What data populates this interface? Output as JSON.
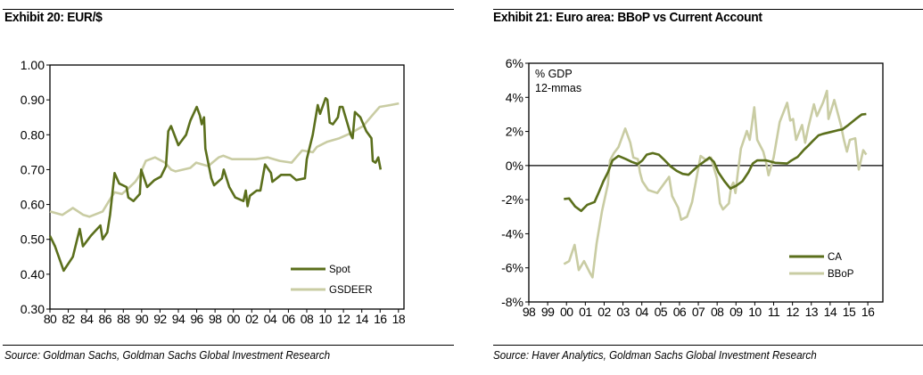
{
  "chart_data": [
    {
      "type": "line",
      "title": "Exhibit 20: EUR/$",
      "source": "Source: Goldman Sachs, Goldman Sachs Global Investment Research",
      "xlim": [
        1980,
        2018.6
      ],
      "ylim": [
        0.3,
        1.0
      ],
      "x_ticks": [
        1980,
        1982,
        1984,
        1986,
        1988,
        1990,
        1992,
        1994,
        1996,
        1998,
        2000,
        2002,
        2004,
        2006,
        2008,
        2010,
        2012,
        2014,
        2016,
        2018
      ],
      "x_tick_labels": [
        "80",
        "82",
        "84",
        "86",
        "88",
        "90",
        "92",
        "94",
        "96",
        "98",
        "00",
        "02",
        "04",
        "06",
        "08",
        "10",
        "12",
        "14",
        "16",
        "18"
      ],
      "y_ticks": [
        0.3,
        0.4,
        0.5,
        0.6,
        0.7,
        0.8,
        0.9,
        1.0
      ],
      "y_tick_labels": [
        "0.30",
        "0.40",
        "0.50",
        "0.60",
        "0.70",
        "0.80",
        "0.90",
        "1.00"
      ],
      "grid": false,
      "legend_position": "bottom-right",
      "series": [
        {
          "name": "Spot",
          "color": "#5b6f1c",
          "x": [
            1980.0,
            1980.55,
            1981.5,
            1982.5,
            1983.25,
            1983.6,
            1984.45,
            1985.5,
            1985.75,
            1986.25,
            1986.55,
            1987.05,
            1987.55,
            1988.35,
            1988.55,
            1989.1,
            1989.8,
            1989.95,
            1990.6,
            1991.4,
            1992.1,
            1992.65,
            1992.9,
            1993.2,
            1994.0,
            1994.85,
            1995.3,
            1996.0,
            1996.35,
            1996.55,
            1996.8,
            1996.95,
            1997.6,
            1997.9,
            1998.75,
            1998.95,
            1999.55,
            2000.2,
            2001.1,
            2001.35,
            2001.55,
            2001.8,
            2002.55,
            2002.95,
            2003.45,
            2004.1,
            2004.25,
            2005.2,
            2006.2,
            2006.85,
            2007.8,
            2008.0,
            2008.65,
            2009.2,
            2009.45,
            2010.05,
            2010.25,
            2010.5,
            2010.85,
            2011.4,
            2011.6,
            2011.9,
            2012.8,
            2013.0,
            2013.25,
            2013.85,
            2014.5,
            2015.05,
            2015.2,
            2015.5,
            2015.8,
            2016.05
          ],
          "y": [
            0.51,
            0.48,
            0.41,
            0.45,
            0.53,
            0.48,
            0.51,
            0.54,
            0.5,
            0.52,
            0.57,
            0.69,
            0.66,
            0.65,
            0.62,
            0.61,
            0.63,
            0.7,
            0.65,
            0.67,
            0.68,
            0.71,
            0.81,
            0.825,
            0.77,
            0.8,
            0.84,
            0.88,
            0.855,
            0.83,
            0.85,
            0.76,
            0.675,
            0.655,
            0.675,
            0.7,
            0.65,
            0.62,
            0.61,
            0.64,
            0.595,
            0.625,
            0.64,
            0.64,
            0.715,
            0.69,
            0.665,
            0.685,
            0.685,
            0.67,
            0.675,
            0.73,
            0.8,
            0.885,
            0.86,
            0.905,
            0.9,
            0.835,
            0.83,
            0.85,
            0.88,
            0.88,
            0.8,
            0.79,
            0.865,
            0.85,
            0.81,
            0.79,
            0.725,
            0.72,
            0.735,
            0.7
          ]
        },
        {
          "name": "GSDEER",
          "color": "#c9cca3",
          "x": [
            1980.0,
            1981.35,
            1982.5,
            1983.65,
            1984.3,
            1985.75,
            1986.55,
            1987.05,
            1987.85,
            1988.5,
            1989.3,
            1989.8,
            1990.45,
            1991.45,
            1992.55,
            1993.2,
            1993.7,
            1995.3,
            1995.95,
            1997.25,
            1998.4,
            1998.9,
            1999.85,
            2002.45,
            2003.75,
            2005.05,
            2006.35,
            2007.0,
            2007.5,
            2008.65,
            2009.1,
            2010.25,
            2011.55,
            2012.85,
            2014.15,
            2015.45,
            2015.95,
            2017.1,
            2018.05
          ],
          "y": [
            0.58,
            0.57,
            0.59,
            0.57,
            0.565,
            0.58,
            0.615,
            0.635,
            0.63,
            0.645,
            0.665,
            0.685,
            0.725,
            0.735,
            0.72,
            0.7,
            0.695,
            0.705,
            0.72,
            0.71,
            0.735,
            0.74,
            0.73,
            0.73,
            0.735,
            0.725,
            0.72,
            0.74,
            0.755,
            0.75,
            0.765,
            0.78,
            0.79,
            0.805,
            0.825,
            0.865,
            0.88,
            0.885,
            0.89
          ]
        }
      ]
    },
    {
      "type": "line",
      "title": "Exhibit 21: Euro area: BBoP vs Current Account",
      "source": "Source: Haver Analytics, Goldman Sachs Global Investment Research",
      "annotation": [
        "% GDP",
        "12-mmas"
      ],
      "xlim": [
        1998,
        2016.8
      ],
      "ylim": [
        -8,
        6
      ],
      "x_ticks": [
        1998,
        1999,
        2000,
        2001,
        2002,
        2003,
        2004,
        2005,
        2006,
        2007,
        2008,
        2009,
        2010,
        2011,
        2012,
        2013,
        2014,
        2015,
        2016
      ],
      "x_tick_labels": [
        "98",
        "99",
        "00",
        "01",
        "02",
        "03",
        "04",
        "05",
        "06",
        "07",
        "08",
        "09",
        "10",
        "11",
        "12",
        "13",
        "14",
        "15",
        "16"
      ],
      "y_ticks": [
        -8,
        -6,
        -4,
        -2,
        0,
        2,
        4,
        6
      ],
      "y_tick_labels": [
        "-8%",
        "-6%",
        "-4%",
        "-2%",
        "0%",
        "2%",
        "4%",
        "6%"
      ],
      "zero_line": true,
      "grid": false,
      "legend_position": "bottom-right",
      "series": [
        {
          "name": "CA",
          "color": "#5b6f1c",
          "x": [
            1999.86,
            2000.14,
            2000.46,
            2000.78,
            2001.09,
            2001.49,
            2001.73,
            2001.96,
            2002.2,
            2002.44,
            2002.76,
            2003.15,
            2003.47,
            2003.79,
            2004.03,
            2004.26,
            2004.58,
            2004.9,
            2005.22,
            2005.53,
            2005.85,
            2006.17,
            2006.48,
            2006.96,
            2007.28,
            2007.59,
            2007.83,
            2008.07,
            2008.39,
            2008.7,
            2009.02,
            2009.34,
            2009.66,
            2009.89,
            2010.13,
            2010.61,
            2011.08,
            2011.72,
            2011.95,
            2012.27,
            2012.59,
            2012.83,
            2013.06,
            2013.38,
            2013.62,
            2013.94,
            2014.41,
            2014.65,
            2014.97,
            2015.36,
            2015.68,
            2015.92
          ],
          "y": [
            -1.96,
            -1.93,
            -2.4,
            -2.66,
            -2.31,
            -2.14,
            -1.53,
            -0.92,
            -0.4,
            0.3,
            0.56,
            0.38,
            0.21,
            0.09,
            0.3,
            0.64,
            0.73,
            0.64,
            0.3,
            -0.05,
            -0.31,
            -0.49,
            -0.54,
            -0.05,
            0.21,
            0.47,
            0.21,
            -0.4,
            -0.92,
            -1.35,
            -1.18,
            -0.92,
            -0.4,
            0.12,
            0.3,
            0.3,
            0.16,
            0.12,
            0.3,
            0.5,
            0.9,
            1.16,
            1.42,
            1.77,
            1.86,
            1.94,
            2.07,
            2.12,
            2.38,
            2.73,
            2.99,
            3.02
          ]
        },
        {
          "name": "BBoP",
          "color": "#c9cca3",
          "x": [
            1999.86,
            2000.14,
            2000.43,
            2000.65,
            2000.93,
            2001.25,
            2001.38,
            2001.6,
            2001.89,
            2002.2,
            2002.31,
            2002.52,
            2002.76,
            2002.96,
            2003.12,
            2003.39,
            2003.55,
            2003.79,
            2003.9,
            2004.03,
            2004.34,
            2004.82,
            2005.45,
            2005.61,
            2005.93,
            2006.09,
            2006.4,
            2006.67,
            2006.96,
            2007.12,
            2007.44,
            2007.67,
            2007.99,
            2008.15,
            2008.31,
            2008.62,
            2008.74,
            2008.86,
            2008.97,
            2009.1,
            2009.26,
            2009.58,
            2009.73,
            2009.81,
            2009.97,
            2010.13,
            2010.45,
            2010.61,
            2010.73,
            2011.0,
            2011.32,
            2011.72,
            2011.88,
            2012.03,
            2012.19,
            2012.51,
            2012.67,
            2012.83,
            2013.14,
            2013.3,
            2013.62,
            2013.83,
            2013.91,
            2014.22,
            2014.57,
            2014.73,
            2014.89,
            2015.05,
            2015.33,
            2015.52,
            2015.76,
            2015.92
          ],
          "y": [
            -5.78,
            -5.6,
            -4.65,
            -6.13,
            -5.6,
            -6.3,
            -6.56,
            -4.57,
            -2.66,
            -1.09,
            0.3,
            0.73,
            1.08,
            1.68,
            2.17,
            1.34,
            0.47,
            0.38,
            -0.4,
            -0.92,
            -1.44,
            -1.61,
            -0.66,
            -1.79,
            -2.48,
            -3.18,
            -3.0,
            -2.14,
            -0.4,
            0.56,
            0.3,
            0.47,
            -0.75,
            -2.22,
            -2.57,
            -2.22,
            -1.27,
            -1.0,
            -1.61,
            -0.4,
            0.99,
            2.03,
            1.51,
            2.12,
            3.42,
            1.51,
            0.82,
            0.12,
            -0.57,
            0.47,
            2.55,
            3.68,
            2.64,
            2.73,
            1.51,
            2.38,
            1.34,
            2.2,
            3.59,
            2.9,
            3.68,
            4.38,
            2.73,
            3.85,
            2.38,
            1.51,
            0.82,
            1.51,
            1.6,
            -0.23,
            0.9,
            0.64
          ]
        }
      ]
    }
  ]
}
